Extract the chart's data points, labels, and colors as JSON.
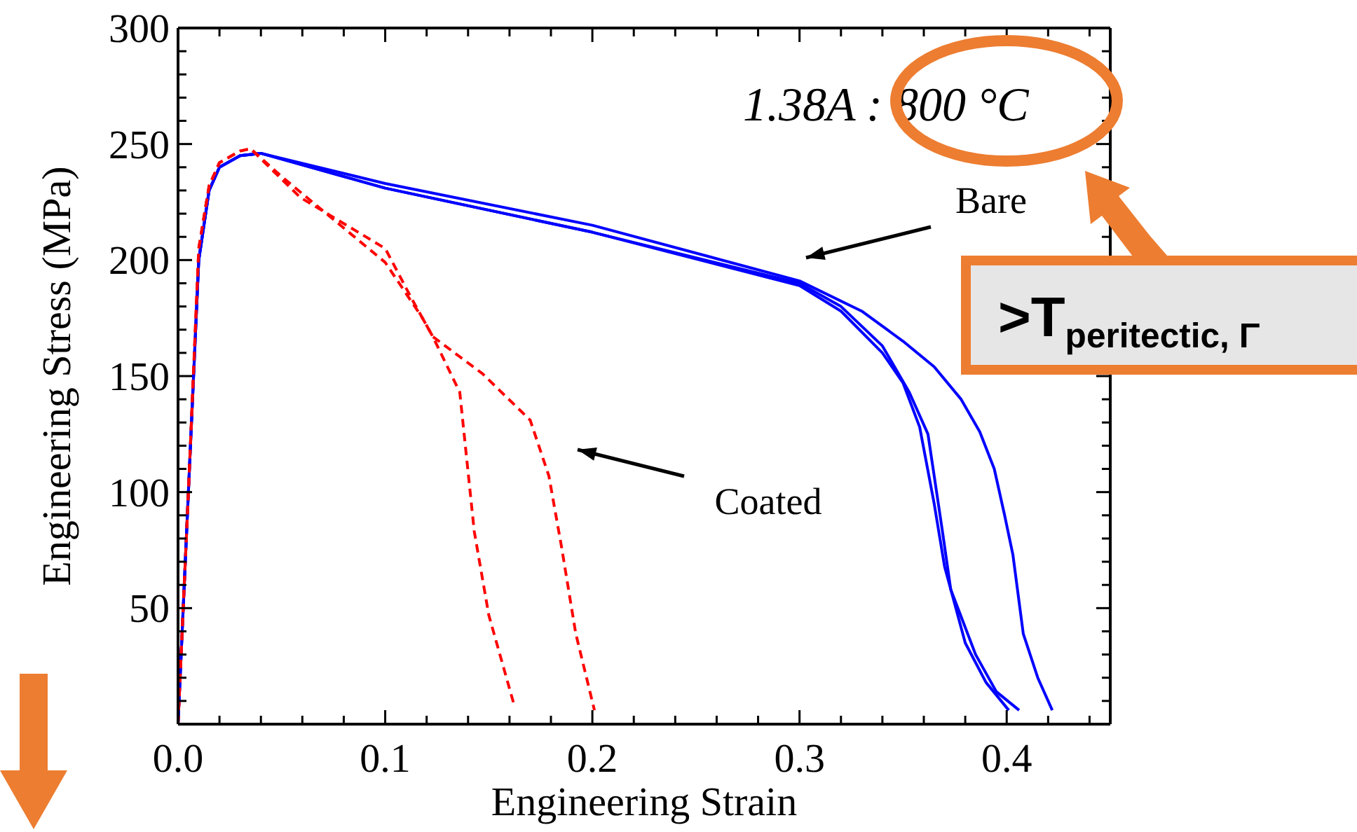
{
  "chart_data": {
    "type": "line",
    "xlabel": "Engineering Strain",
    "ylabel": "Engineering Stress (MPa)",
    "xlim": [
      0,
      0.45
    ],
    "ylim": [
      0,
      300
    ],
    "xticks": [
      {
        "value": 0,
        "label": "0.0"
      },
      {
        "value": 0.02,
        "label": null
      },
      {
        "value": 0.04,
        "label": null
      },
      {
        "value": 0.06,
        "label": null
      },
      {
        "value": 0.08,
        "label": null
      },
      0.1,
      {
        "value": 0.12,
        "label": null
      },
      {
        "value": 0.14,
        "label": null
      },
      {
        "value": 0.16,
        "label": null
      },
      {
        "value": 0.18,
        "label": null
      },
      0.2,
      {
        "value": 0.22,
        "label": null
      },
      {
        "value": 0.24,
        "label": null
      },
      {
        "value": 0.26,
        "label": null
      },
      {
        "value": 0.28,
        "label": null
      },
      0.3,
      {
        "value": 0.32,
        "label": null
      },
      {
        "value": 0.34,
        "label": null
      },
      {
        "value": 0.36,
        "label": null
      },
      {
        "value": 0.38,
        "label": null
      },
      0.4,
      {
        "value": 0.42,
        "label": null
      },
      {
        "value": 0.44,
        "label": null
      }
    ],
    "yticks": [
      {
        "value": 10,
        "label": null
      },
      {
        "value": 20,
        "label": null
      },
      {
        "value": 30,
        "label": null
      },
      {
        "value": 40,
        "label": null
      },
      50,
      {
        "value": 60,
        "label": null
      },
      {
        "value": 70,
        "label": null
      },
      {
        "value": 80,
        "label": null
      },
      {
        "value": 90,
        "label": null
      },
      100,
      {
        "value": 110,
        "label": null
      },
      {
        "value": 120,
        "label": null
      },
      {
        "value": 130,
        "label": null
      },
      {
        "value": 140,
        "label": null
      },
      150,
      {
        "value": 160,
        "label": null
      },
      {
        "value": 170,
        "label": null
      },
      {
        "value": 180,
        "label": null
      },
      {
        "value": 190,
        "label": null
      },
      200,
      {
        "value": 210,
        "label": null
      },
      {
        "value": 220,
        "label": null
      },
      {
        "value": 230,
        "label": null
      },
      {
        "value": 240,
        "label": null
      },
      250,
      {
        "value": 260,
        "label": null
      },
      {
        "value": 270,
        "label": null
      },
      {
        "value": 280,
        "label": null
      },
      {
        "value": 290,
        "label": null
      },
      300
    ],
    "marker": "none",
    "series": [
      {
        "color": "#0000ff",
        "line_style": "solid",
        "x": [
          0,
          0.005,
          0.01,
          0.015,
          0.02,
          0.03,
          0.04,
          0.1,
          0.2,
          0.3,
          0.33,
          0.35,
          0.365,
          0.378,
          0.387,
          0.394,
          0.399,
          0.403,
          0.408,
          0.415,
          0.422
        ],
        "values": [
          0,
          100,
          200,
          230,
          240,
          245,
          246,
          233,
          215,
          191,
          178,
          165,
          154,
          140,
          126,
          110,
          90,
          73,
          39,
          20,
          6
        ]
      },
      {
        "color": "#0000ff",
        "line_style": "solid",
        "x": [
          0,
          0.005,
          0.01,
          0.015,
          0.02,
          0.03,
          0.04,
          0.1,
          0.2,
          0.3,
          0.32,
          0.34,
          0.353,
          0.362,
          0.369,
          0.373,
          0.385,
          0.395,
          0.406
        ],
        "values": [
          0,
          100,
          200,
          230,
          240,
          245,
          246,
          231,
          212,
          190,
          180,
          163,
          143,
          125,
          83,
          58,
          30,
          14,
          6
        ]
      },
      {
        "color": "#0000ff",
        "line_style": "solid",
        "x": [
          0,
          0.005,
          0.01,
          0.015,
          0.02,
          0.03,
          0.04,
          0.1,
          0.2,
          0.3,
          0.32,
          0.34,
          0.35,
          0.358,
          0.365,
          0.37,
          0.38,
          0.39,
          0.401
        ],
        "values": [
          0,
          100,
          200,
          230,
          240,
          245,
          246,
          231,
          212,
          189,
          178,
          160,
          147,
          128,
          95,
          68,
          35,
          18,
          6
        ]
      },
      {
        "color": "#ff0000",
        "line_style": "dashed",
        "x": [
          0,
          0.005,
          0.01,
          0.015,
          0.02,
          0.03,
          0.035,
          0.05,
          0.1,
          0.118,
          0.123,
          0.136,
          0.143,
          0.15,
          0.162
        ],
        "values": [
          0,
          100,
          205,
          232,
          242,
          247,
          248,
          236,
          199,
          175,
          167,
          143,
          83,
          47,
          9
        ]
      },
      {
        "color": "#ff0000",
        "line_style": "dashed",
        "x": [
          0,
          0.005,
          0.01,
          0.015,
          0.02,
          0.03,
          0.035,
          0.059,
          0.1,
          0.113,
          0.123,
          0.147,
          0.17,
          0.179,
          0.185,
          0.192,
          0.201
        ],
        "values": [
          0,
          100,
          205,
          232,
          242,
          247,
          248,
          227,
          205,
          183,
          167,
          151,
          131,
          107,
          77,
          39,
          6
        ]
      }
    ],
    "annotations": [
      "Bare",
      "Coated",
      "1.38A : 800 °C",
      ">T$_{peritectic, Γ}$"
    ]
  }
}
